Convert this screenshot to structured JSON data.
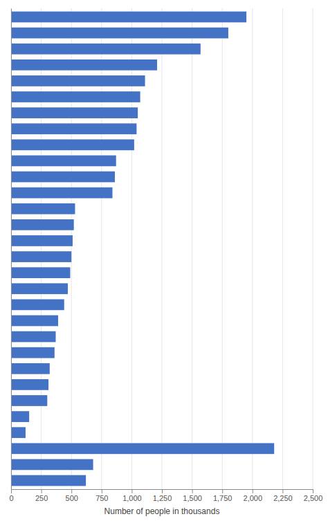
{
  "chart_data": {
    "type": "bar",
    "orientation": "horizontal",
    "categories": [
      null,
      null,
      null,
      null,
      null,
      null,
      null,
      null,
      null,
      null,
      null,
      null,
      null,
      null,
      null,
      null,
      null,
      null,
      null,
      null,
      null,
      null,
      null,
      null,
      null,
      null,
      null,
      null,
      null,
      null
    ],
    "values": [
      1950,
      1800,
      1570,
      1210,
      1110,
      1070,
      1050,
      1040,
      1020,
      870,
      860,
      840,
      530,
      520,
      510,
      500,
      490,
      470,
      440,
      390,
      370,
      360,
      320,
      310,
      300,
      150,
      120,
      2180,
      680,
      620
    ],
    "color": "#4472c4",
    "xlabel": "Number of people in thousands",
    "xlim": [
      0,
      2500
    ],
    "xticks": [
      0,
      250,
      500,
      750,
      {
        "value": 1000,
        "label": "1,000"
      },
      {
        "value": 1250,
        "label": "1,250"
      },
      {
        "value": 1500,
        "label": "1,500"
      },
      {
        "value": 1750,
        "label": "1,750"
      },
      {
        "value": 2000,
        "label": "2,000"
      },
      {
        "value": 2250,
        "label": "2,250"
      },
      {
        "value": 2500,
        "label": "2,500"
      }
    ],
    "grid": true,
    "tick_labels": "x"
  }
}
